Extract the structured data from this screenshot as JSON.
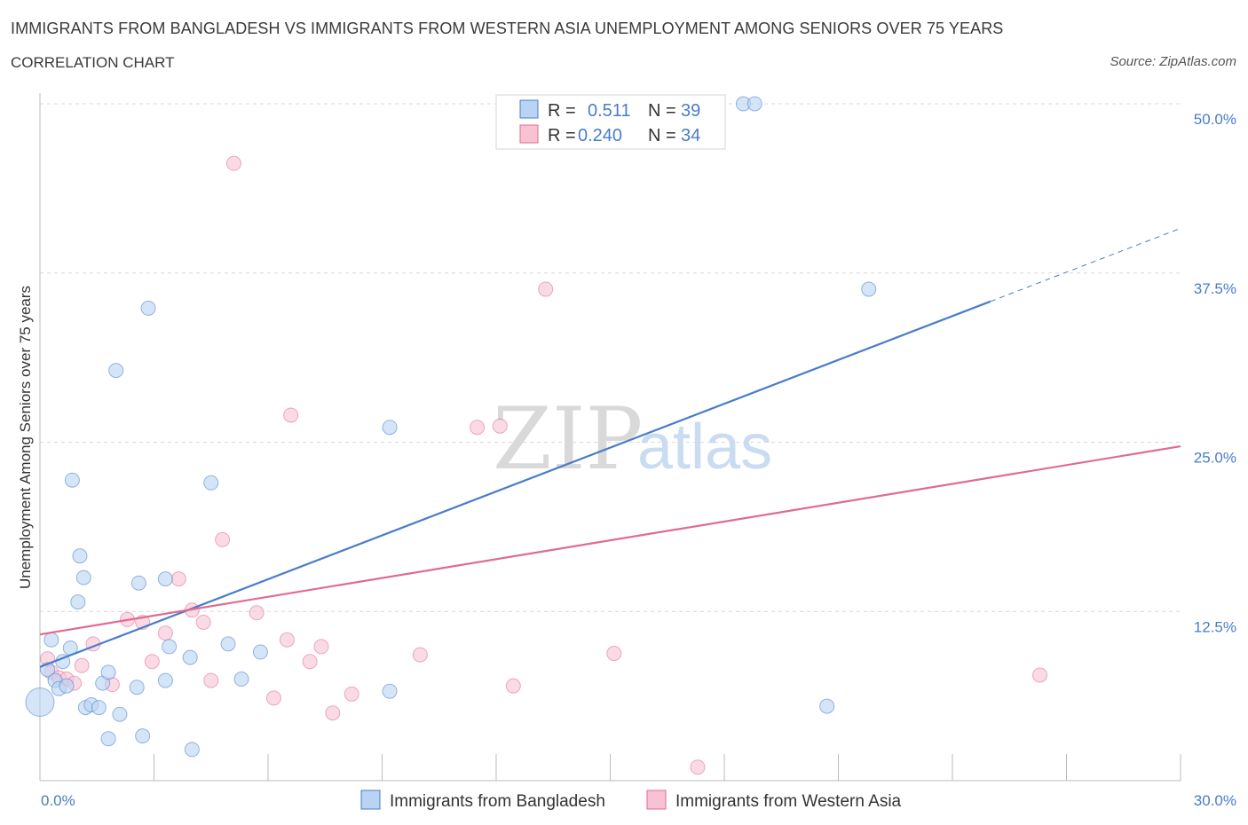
{
  "title": "IMMIGRANTS FROM BANGLADESH VS IMMIGRANTS FROM WESTERN ASIA UNEMPLOYMENT AMONG SENIORS OVER 75 YEARS",
  "subtitle": "CORRELATION CHART",
  "source": "Source: ZipAtlas.com",
  "watermark": {
    "zip": "ZIP",
    "atlas": "atlas"
  },
  "colors": {
    "blue": "#4a7cc9",
    "blue_fill": "#b9d3f3",
    "pink": "#e06a92",
    "pink_fill": "#f7c3d3",
    "grid": "#d9d9d9"
  },
  "chart_data": {
    "type": "scatter",
    "xlabel": "",
    "ylabel": "Unemployment Among Seniors over 75 years",
    "xlim": [
      0,
      30
    ],
    "ylim": [
      0,
      50
    ],
    "x_tick_labels": [
      "0.0%",
      "30.0%"
    ],
    "y_tick_labels": [
      "12.5%",
      "25.0%",
      "37.5%",
      "50.0%"
    ],
    "y_ticks": [
      12.5,
      25.0,
      37.5,
      50.0
    ],
    "grid": true,
    "legend_position": "top-center",
    "legend": [
      {
        "r_label": "R =",
        "r_value": "0.511",
        "n_label": "N =",
        "n_value": "39"
      },
      {
        "r_label": "R =",
        "r_value": "0.240",
        "n_label": "N =",
        "n_value": "34"
      }
    ],
    "series": [
      {
        "name": "Immigrants from Bangladesh",
        "color": "#4a7cc9",
        "fill": "#b9d3f3",
        "points": [
          [
            0.0,
            5.8
          ],
          [
            0.2,
            8.2
          ],
          [
            0.3,
            10.4
          ],
          [
            0.4,
            7.4
          ],
          [
            0.5,
            6.8
          ],
          [
            0.6,
            8.8
          ],
          [
            0.7,
            7.0
          ],
          [
            0.8,
            9.8
          ],
          [
            0.85,
            22.2
          ],
          [
            1.0,
            13.2
          ],
          [
            1.05,
            16.6
          ],
          [
            1.15,
            15.0
          ],
          [
            1.2,
            5.4
          ],
          [
            1.35,
            5.6
          ],
          [
            1.55,
            5.4
          ],
          [
            1.65,
            7.2
          ],
          [
            1.8,
            8.0
          ],
          [
            1.8,
            3.1
          ],
          [
            2.0,
            30.3
          ],
          [
            2.1,
            4.9
          ],
          [
            2.55,
            6.9
          ],
          [
            2.6,
            14.6
          ],
          [
            2.7,
            3.3
          ],
          [
            2.85,
            34.9
          ],
          [
            3.3,
            14.9
          ],
          [
            3.3,
            7.4
          ],
          [
            3.4,
            9.9
          ],
          [
            3.95,
            9.1
          ],
          [
            4.0,
            2.3
          ],
          [
            4.5,
            22.0
          ],
          [
            4.95,
            10.1
          ],
          [
            5.3,
            7.5
          ],
          [
            5.8,
            9.5
          ],
          [
            9.2,
            6.6
          ],
          [
            9.2,
            26.1
          ],
          [
            18.5,
            50.0
          ],
          [
            18.8,
            50.0
          ],
          [
            20.7,
            5.5
          ],
          [
            21.8,
            36.3
          ]
        ],
        "trend": {
          "x": [
            0.0,
            25.0
          ],
          "y": [
            8.4,
            35.4
          ]
        },
        "trend_dashed": {
          "x": [
            25.0,
            30.0
          ],
          "y": [
            35.4,
            40.8
          ]
        }
      },
      {
        "name": "Immigrants from Western Asia",
        "color": "#e06a92",
        "fill": "#f7c3d3",
        "points": [
          [
            0.2,
            9.0
          ],
          [
            0.3,
            8.0
          ],
          [
            0.5,
            7.6
          ],
          [
            0.7,
            7.5
          ],
          [
            0.9,
            7.2
          ],
          [
            1.1,
            8.5
          ],
          [
            1.4,
            10.1
          ],
          [
            1.9,
            7.1
          ],
          [
            2.3,
            11.9
          ],
          [
            2.7,
            11.7
          ],
          [
            2.95,
            8.8
          ],
          [
            3.3,
            10.9
          ],
          [
            3.65,
            14.9
          ],
          [
            4.0,
            12.6
          ],
          [
            4.3,
            11.7
          ],
          [
            4.5,
            7.4
          ],
          [
            4.8,
            17.8
          ],
          [
            5.1,
            45.6
          ],
          [
            5.7,
            12.4
          ],
          [
            6.15,
            6.1
          ],
          [
            6.5,
            10.4
          ],
          [
            6.6,
            27.0
          ],
          [
            7.1,
            8.8
          ],
          [
            7.4,
            9.9
          ],
          [
            7.7,
            5.0
          ],
          [
            8.2,
            6.4
          ],
          [
            10.0,
            9.3
          ],
          [
            11.5,
            26.1
          ],
          [
            12.1,
            26.2
          ],
          [
            12.45,
            7.0
          ],
          [
            13.3,
            36.3
          ],
          [
            15.1,
            9.4
          ],
          [
            17.3,
            1.0
          ],
          [
            26.3,
            7.8
          ]
        ],
        "trend": {
          "x": [
            0.0,
            30.0
          ],
          "y": [
            10.8,
            24.7
          ]
        }
      }
    ]
  },
  "bottom_legend": [
    {
      "label": "Immigrants from Bangladesh"
    },
    {
      "label": "Immigrants from Western Asia"
    }
  ]
}
